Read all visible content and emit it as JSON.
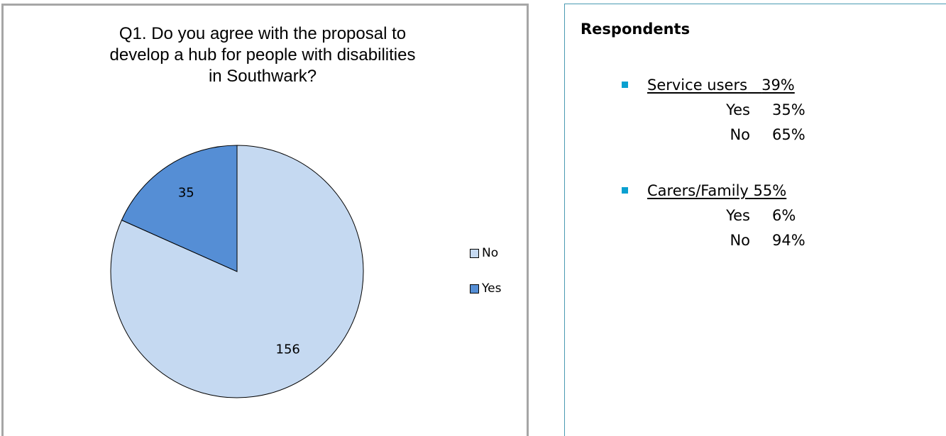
{
  "chart_data": {
    "type": "pie",
    "title_lines": [
      "Q1. Do you agree with the proposal to",
      "develop a hub for people with disabilities",
      "in Southwark?"
    ],
    "slices": [
      {
        "name": "No",
        "value": 156,
        "label": "156",
        "color": "#c5d9f1"
      },
      {
        "name": "Yes",
        "value": 35,
        "label": "35",
        "color": "#558ed5"
      }
    ],
    "legend": [
      "No",
      "Yes"
    ],
    "legend_position": "right",
    "start_angle_deg": 0,
    "direction": "clockwise"
  },
  "respondents": {
    "heading": "Respondents",
    "groups": [
      {
        "title": "Service users",
        "percent": "39%",
        "rows": [
          {
            "label": "Yes",
            "value": "35%"
          },
          {
            "label": "No",
            "value": "65%"
          }
        ]
      },
      {
        "title": "Carers/Family",
        "percent": "55%",
        "rows": [
          {
            "label": "Yes",
            "value": "6%"
          },
          {
            "label": "No",
            "value": "94%"
          }
        ]
      }
    ]
  },
  "colors": {
    "chart_border": "#a6a6a6",
    "panel_border": "#4a9ab3",
    "bullet": "#0aa0d0",
    "slice_outline": "#000000"
  }
}
